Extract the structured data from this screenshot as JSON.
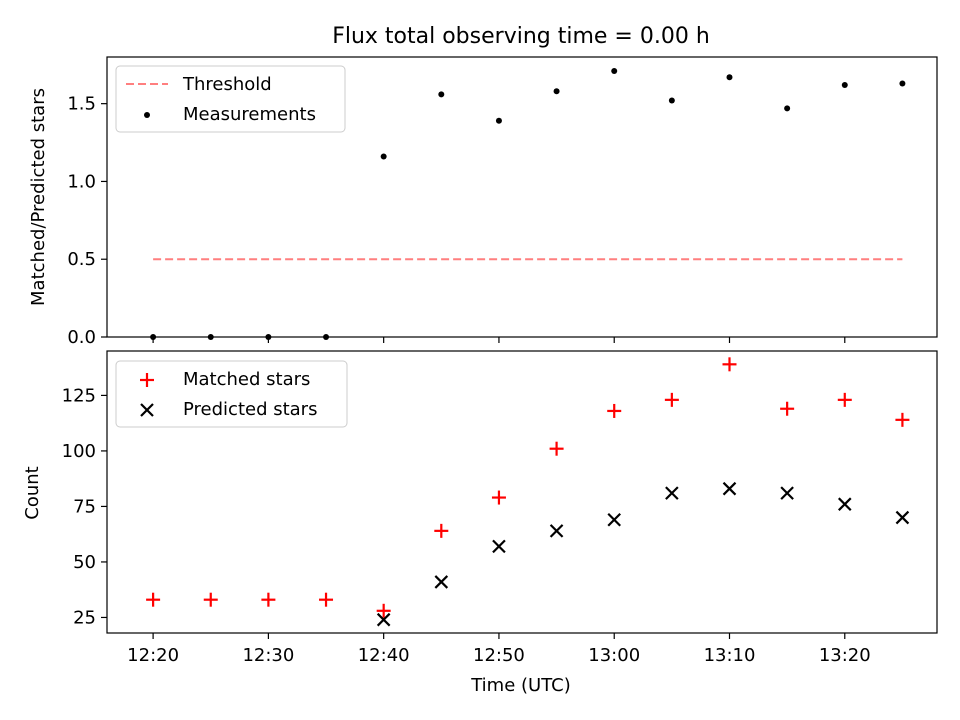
{
  "figure_title": "Flux total observing time = 0.00 h",
  "colors": {
    "threshold": "#ff7f7f",
    "measurements": "#000000",
    "matched": "#ff0000",
    "predicted": "#000000"
  },
  "chart_data": [
    {
      "type": "scatter",
      "ylabel": "Matched/Predicted stars",
      "xlim": [
        "12:16",
        "13:28"
      ],
      "ylim": [
        0,
        1.8
      ],
      "yticks": [
        "0.0",
        "0.5",
        "1.0",
        "1.5"
      ],
      "ytick_values": [
        0,
        0.5,
        1.0,
        1.5
      ],
      "legend_placement": "upper-left",
      "threshold": {
        "name": "Threshold",
        "y": 0.5,
        "x_start": "12:20",
        "x_end": "13:25"
      },
      "series": [
        {
          "name": "Measurements",
          "x": [
            "12:20",
            "12:25",
            "12:30",
            "12:35",
            "12:40",
            "12:45",
            "12:50",
            "12:55",
            "13:00",
            "13:05",
            "13:10",
            "13:15",
            "13:20",
            "13:25"
          ],
          "values": [
            0,
            0,
            0,
            0,
            1.16,
            1.56,
            1.39,
            1.58,
            1.71,
            1.52,
            1.67,
            1.47,
            1.62,
            1.63
          ]
        }
      ]
    },
    {
      "type": "scatter",
      "xlabel": "Time (UTC)",
      "ylabel": "Count",
      "xlim": [
        "12:16",
        "13:28"
      ],
      "ylim": [
        18,
        145
      ],
      "xticks": [
        "12:20",
        "12:30",
        "12:40",
        "12:50",
        "13:00",
        "13:10",
        "13:20"
      ],
      "yticks": [
        "25",
        "50",
        "75",
        "100",
        "125"
      ],
      "ytick_values": [
        25,
        50,
        75,
        100,
        125
      ],
      "legend_placement": "upper-left",
      "series": [
        {
          "name": "Matched stars",
          "marker": "plus",
          "x": [
            "12:20",
            "12:25",
            "12:30",
            "12:35",
            "12:40",
            "12:45",
            "12:50",
            "12:55",
            "13:00",
            "13:05",
            "13:10",
            "13:15",
            "13:20",
            "13:25"
          ],
          "values": [
            33,
            33,
            33,
            33,
            28,
            64,
            79,
            101,
            118,
            123,
            139,
            119,
            123,
            114
          ]
        },
        {
          "name": "Predicted stars",
          "marker": "x",
          "x": [
            "12:40",
            "12:45",
            "12:50",
            "12:55",
            "13:00",
            "13:05",
            "13:10",
            "13:15",
            "13:20",
            "13:25"
          ],
          "values": [
            24,
            41,
            57,
            64,
            69,
            81,
            83,
            81,
            76,
            70
          ]
        }
      ]
    }
  ]
}
